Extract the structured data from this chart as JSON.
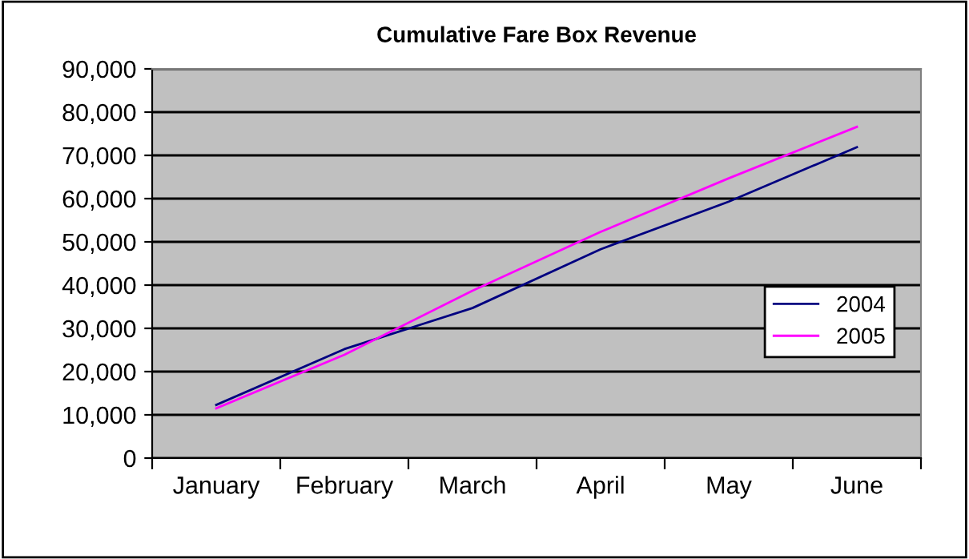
{
  "chart_data": {
    "type": "line",
    "title": "Cumulative Fare Box Revenue",
    "categories": [
      "January",
      "February",
      "March",
      "April",
      "May",
      "June"
    ],
    "series": [
      {
        "name": "2004",
        "color": "#000080",
        "values": [
          12300,
          25200,
          34700,
          48300,
          59300,
          71900
        ]
      },
      {
        "name": "2005",
        "color": "#ff00ff",
        "values": [
          11500,
          23900,
          38700,
          52300,
          64700,
          76600
        ]
      }
    ],
    "ylim": [
      0,
      90000
    ],
    "yticks": [
      {
        "value": 0,
        "label": "0"
      },
      {
        "value": 10000,
        "label": "10,000"
      },
      {
        "value": 20000,
        "label": "20,000"
      },
      {
        "value": 30000,
        "label": "30,000"
      },
      {
        "value": 40000,
        "label": "40,000"
      },
      {
        "value": 50000,
        "label": "50,000"
      },
      {
        "value": 60000,
        "label": "60,000"
      },
      {
        "value": 70000,
        "label": "70,000"
      },
      {
        "value": 80000,
        "label": "80,000"
      },
      {
        "value": 90000,
        "label": "90,000"
      }
    ],
    "grid": "y",
    "legend": "center right",
    "marker": "none",
    "line_style": "solid"
  }
}
